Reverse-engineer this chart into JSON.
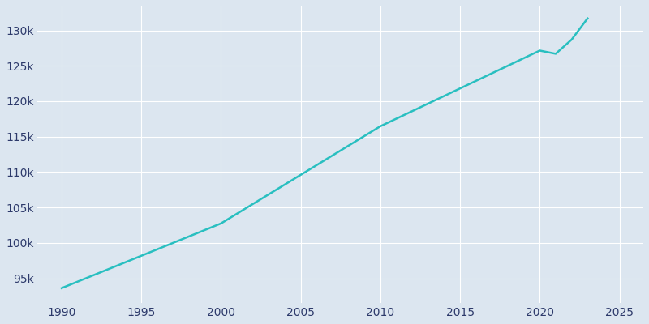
{
  "years": [
    1990,
    2000,
    2010,
    2020,
    2021,
    2022,
    2023
  ],
  "population": [
    93613,
    102747,
    116468,
    127150,
    126700,
    128700,
    131700
  ],
  "line_color": "#29bfc0",
  "bg_color": "#dce6f0",
  "plot_bg_color": "#dce6f0",
  "grid_color": "#ffffff",
  "tick_label_color": "#2d3a6b",
  "xlim": [
    1988.5,
    2026.5
  ],
  "ylim": [
    91500,
    133500
  ],
  "xticks": [
    1990,
    1995,
    2000,
    2005,
    2010,
    2015,
    2020,
    2025
  ],
  "yticks": [
    95000,
    100000,
    105000,
    110000,
    115000,
    120000,
    125000,
    130000
  ]
}
